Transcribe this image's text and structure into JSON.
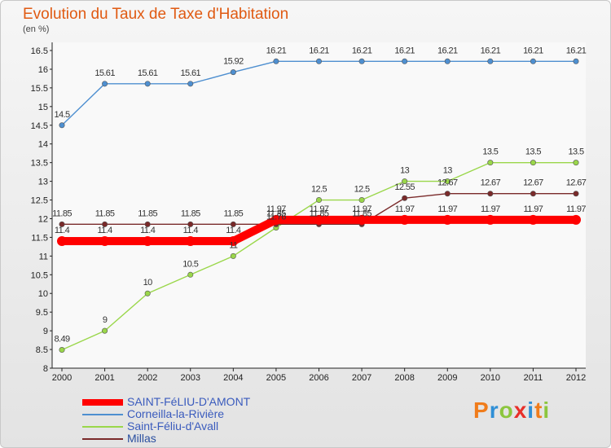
{
  "chart_data": {
    "type": "line",
    "title": "Evolution du Taux de Taxe d'Habitation",
    "ylabel": "(en %)",
    "xlabel": "",
    "categories": [
      "2000",
      "2001",
      "2002",
      "2003",
      "2004",
      "2005",
      "2006",
      "2007",
      "2008",
      "2009",
      "2010",
      "2011",
      "2012"
    ],
    "ylim": [
      8,
      16.5
    ],
    "yticks": [
      "8",
      "8.5",
      "9",
      "9.5",
      "10",
      "10.5",
      "11",
      "11.5",
      "12",
      "12.5",
      "13",
      "13.5",
      "14",
      "14.5",
      "15",
      "15.5",
      "16",
      "16.5"
    ],
    "grid": false,
    "legend": "bottom-left",
    "series": [
      {
        "name": "SAINT-FéLIU-D'AMONT",
        "color": "#ff0000",
        "values": [
          11.4,
          11.4,
          11.4,
          11.4,
          11.4,
          11.97,
          11.97,
          11.97,
          11.97,
          11.97,
          11.97,
          11.97,
          11.97
        ],
        "labels": [
          "11.4",
          "11.4",
          "11.4",
          "11.4",
          "11.4",
          "11.97",
          "11.97",
          "11.97",
          "11.97",
          "11.97",
          "11.97",
          "11.97",
          "11.97"
        ]
      },
      {
        "name": "Corneilla-la-Rivière",
        "color": "#4e8fd0",
        "values": [
          14.5,
          15.61,
          15.61,
          15.61,
          15.92,
          16.21,
          16.21,
          16.21,
          16.21,
          16.21,
          16.21,
          16.21,
          16.21
        ],
        "labels": [
          "14.5",
          "15.61",
          "15.61",
          "15.61",
          "15.92",
          "16.21",
          "16.21",
          "16.21",
          "16.21",
          "16.21",
          "16.21",
          "16.21",
          "16.21"
        ]
      },
      {
        "name": "Saint-Féliu-d'Avall",
        "color": "#9ad74a",
        "values": [
          8.49,
          9,
          10,
          10.5,
          11,
          11.76,
          12.5,
          12.5,
          13,
          13,
          13.5,
          13.5,
          13.5
        ],
        "labels": [
          "8.49",
          "9",
          "10",
          "10.5",
          "11",
          "11.76",
          "12.5",
          "12.5",
          "13",
          "13",
          "13.5",
          "13.5",
          "13.5"
        ]
      },
      {
        "name": "Millas",
        "color": "#7a2a2a",
        "values": [
          11.85,
          11.85,
          11.85,
          11.85,
          11.85,
          11.85,
          11.85,
          11.85,
          12.55,
          12.67,
          12.67,
          12.67,
          12.67
        ],
        "labels": [
          "11.85",
          "11.85",
          "11.85",
          "11.85",
          "11.85",
          "11.85",
          "11.85",
          "11.85",
          "12.55",
          "12.67",
          "12.67",
          "12.67",
          "12.67"
        ]
      }
    ]
  },
  "logo_text": "Proxiti",
  "logo_colors": [
    "#f07c1b",
    "#2f8fd6",
    "#8cc63e",
    "#e8302a",
    "#2f8fd6",
    "#f07c1b",
    "#8cc63e"
  ]
}
